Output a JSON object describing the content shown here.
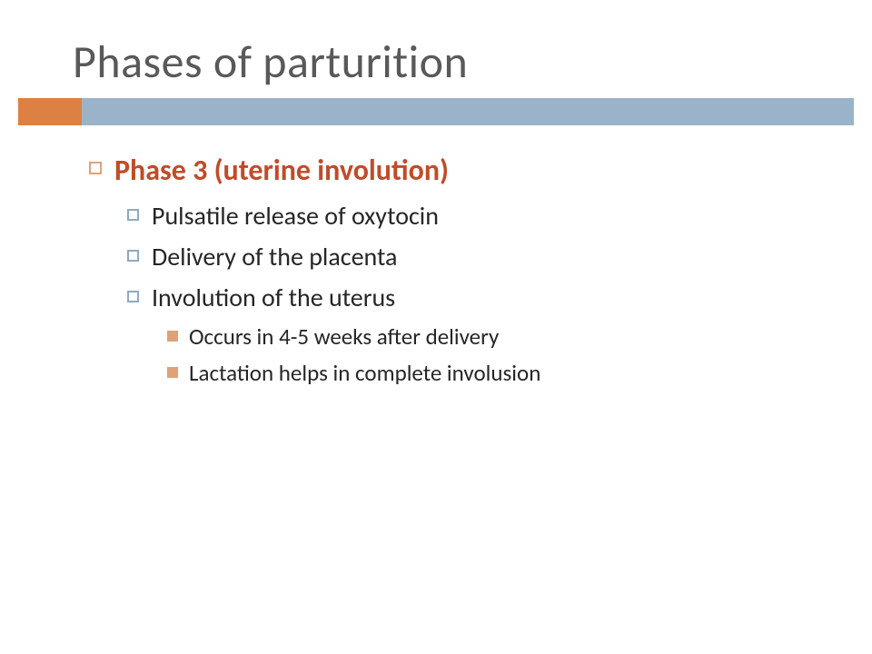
{
  "title": "Phases of parturition",
  "colors": {
    "title_text": "#595959",
    "accent_bar": "#dd8043",
    "rule_bar": "#9ab3c9",
    "heading_text": "#bf4c29",
    "body_text": "#262626",
    "bullet_l1_border": "#e0a376",
    "bullet_l2_border": "#8faabf",
    "bullet_l3_fill": "#e0a176",
    "background": "#ffffff"
  },
  "fonts": {
    "title_size_pt": 40,
    "l1_size_pt": 28,
    "l2_size_pt": 24,
    "l3_size_pt": 22,
    "family": "Gill Sans"
  },
  "content": {
    "heading": "Phase 3 (uterine involution)",
    "items": [
      "Pulsatile release of oxytocin",
      "Delivery of the placenta",
      "Involution of the uterus"
    ],
    "subitems": [
      "Occurs in 4-5 weeks after delivery",
      "Lactation helps in complete involusion"
    ]
  }
}
